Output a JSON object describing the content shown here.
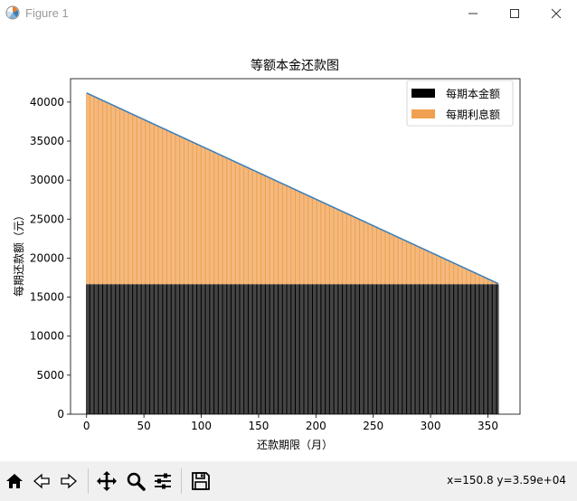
{
  "window": {
    "title": "Figure 1"
  },
  "toolbar": {
    "buttons": [
      "home-icon",
      "back-icon",
      "forward-icon",
      "pan-icon",
      "zoom-icon",
      "configure-icon",
      "save-icon"
    ],
    "coords": "x=150.8 y=3.59e+04"
  },
  "chart_data": {
    "type": "bar",
    "stacked": true,
    "title": "等额本金还款图",
    "xlabel": "还款期限（月）",
    "ylabel": "每期还款额（元）",
    "xlim": [
      -14,
      378
    ],
    "ylim": [
      0,
      43000
    ],
    "xticks": [
      0,
      50,
      100,
      150,
      200,
      250,
      300,
      350
    ],
    "yticks": [
      0,
      5000,
      10000,
      15000,
      20000,
      25000,
      30000,
      35000,
      40000
    ],
    "months": 360,
    "model": "linear",
    "principal_per_period": 16667,
    "interest_first": 24500,
    "interest_last": 69,
    "legend": {
      "position": "upper right",
      "entries": [
        {
          "label": "每期本金额",
          "color": "#000000"
        },
        {
          "label": "每期利息额",
          "color": "#f0a050"
        }
      ]
    },
    "total_line_color": "#3a7db8",
    "series": [
      {
        "name": "每期本金额",
        "color": "#000000"
      },
      {
        "name": "每期利息额",
        "color": "#f0a050"
      }
    ]
  }
}
